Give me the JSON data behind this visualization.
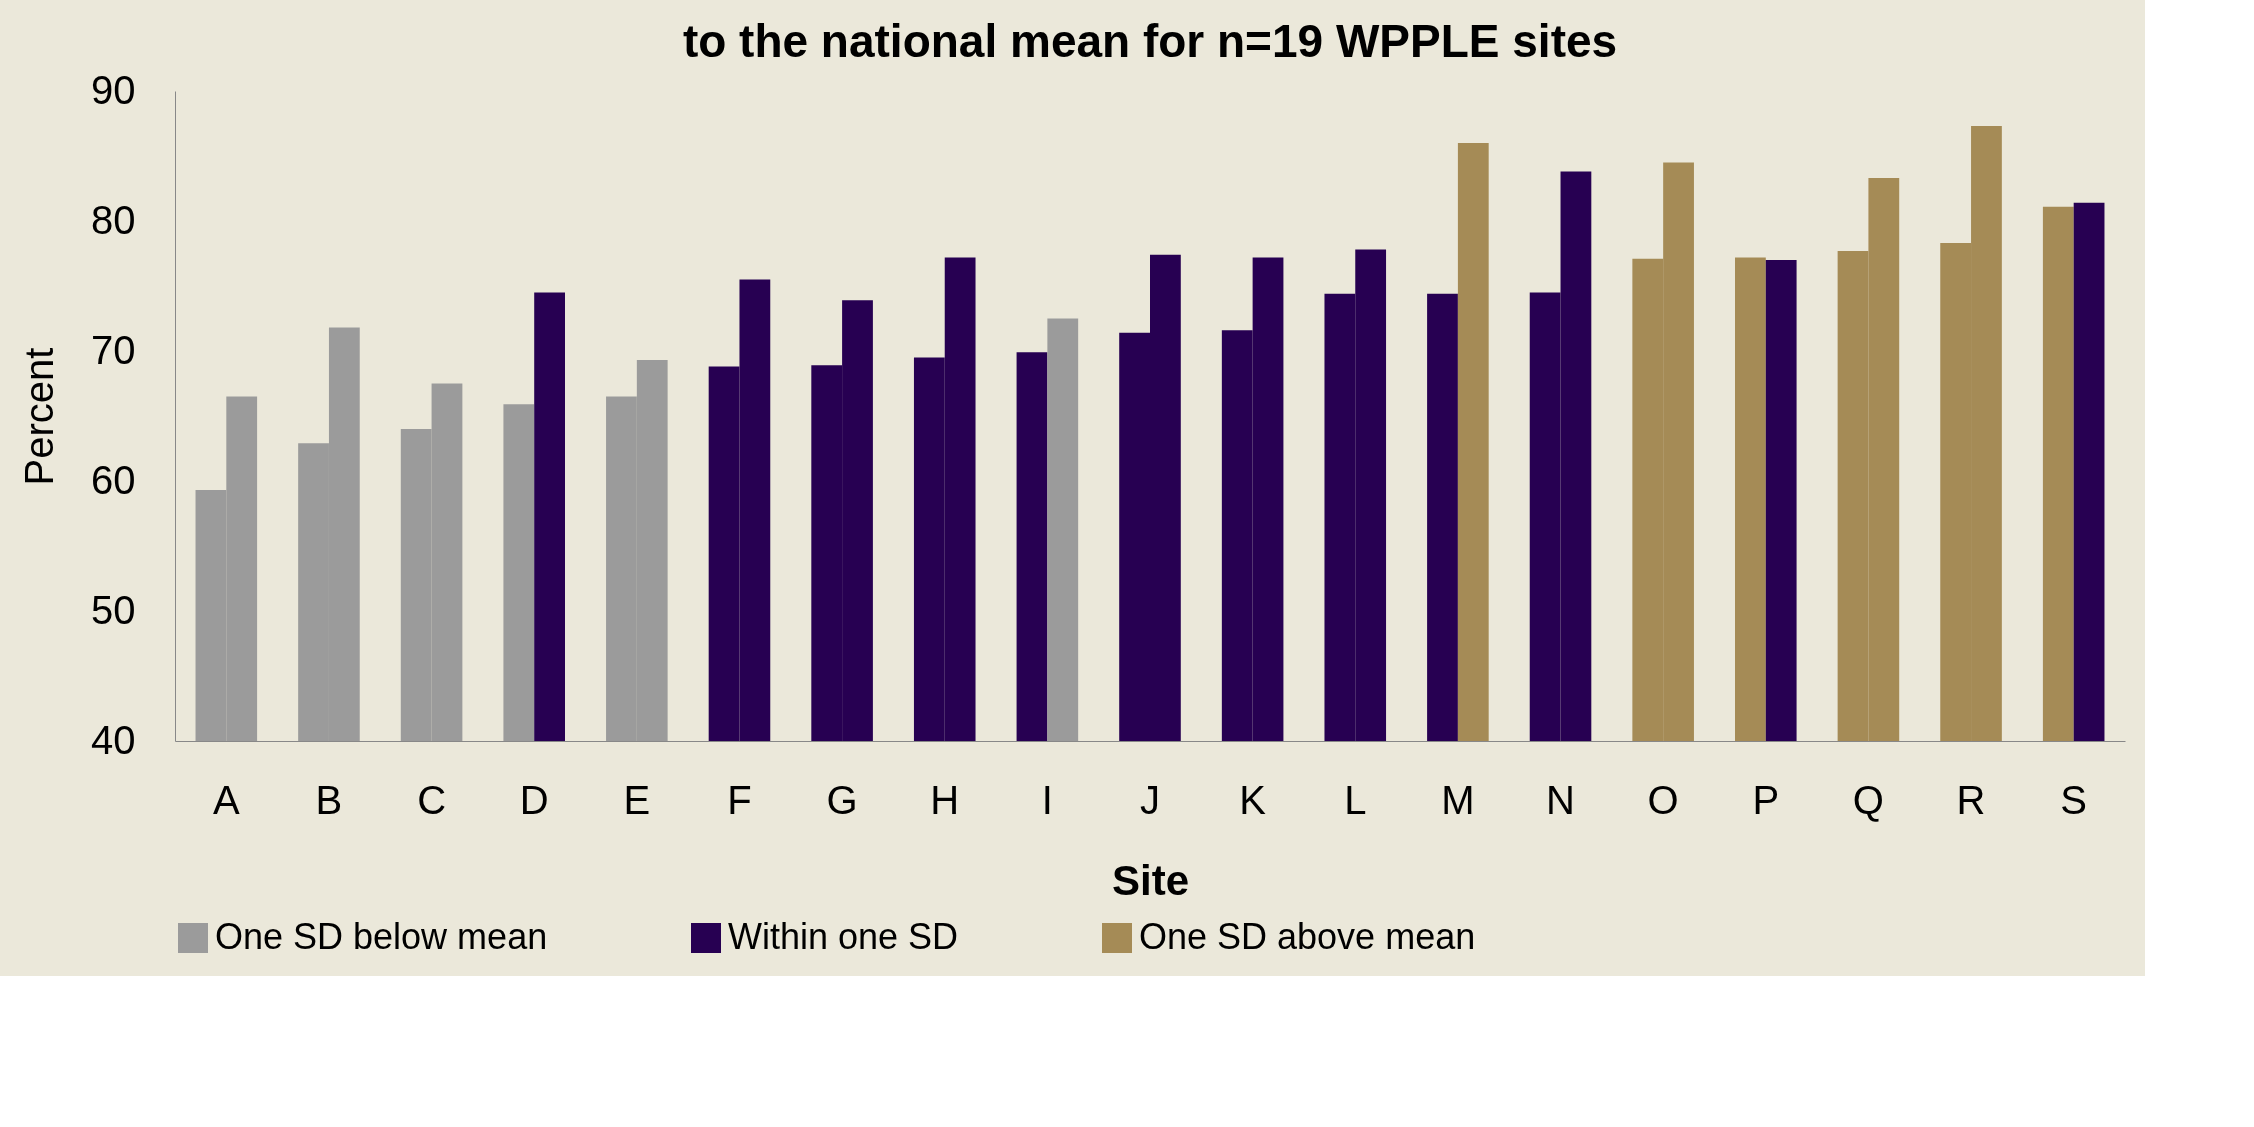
{
  "chart_data": {
    "type": "bar",
    "title": "to the national mean for n=19 WPPLE sites",
    "xlabel": "Site",
    "ylabel": "Percent",
    "categories": [
      "A",
      "B",
      "C",
      "D",
      "E",
      "F",
      "G",
      "H",
      "I",
      "J",
      "K",
      "L",
      "M",
      "N",
      "O",
      "P",
      "Q",
      "R",
      "S"
    ],
    "series": [
      {
        "name": "One SD below mean",
        "color": "#9b9b9b",
        "values": [
          59.3,
          62.9,
          64.0,
          65.9,
          66.5,
          null,
          null,
          null,
          null,
          null,
          null,
          null,
          null,
          null,
          null,
          null,
          null,
          null,
          null
        ]
      },
      {
        "name": "Within one SD",
        "color": "#270052",
        "values": [
          null,
          null,
          null,
          null,
          null,
          68.8,
          68.9,
          69.5,
          69.9,
          71.4,
          71.6,
          74.4,
          74.4,
          74.5,
          null,
          null,
          null,
          null,
          null
        ]
      },
      {
        "name": "One SD above mean",
        "color": "#a58b56",
        "values": [
          null,
          null,
          null,
          null,
          null,
          null,
          null,
          null,
          null,
          null,
          null,
          null,
          null,
          null,
          77.1,
          77.2,
          77.7,
          78.3,
          81.1
        ]
      },
      {
        "color": "#9b9b9b",
        "values": [
          66.5,
          71.8,
          67.5,
          null,
          69.3,
          null,
          null,
          null,
          72.5,
          null,
          null,
          null,
          null,
          null,
          null,
          null,
          null,
          null,
          null
        ]
      },
      {
        "color": "#270052",
        "values": [
          null,
          null,
          null,
          74.5,
          null,
          75.5,
          73.9,
          77.2,
          null,
          77.4,
          77.2,
          77.8,
          null,
          83.8,
          null,
          77.0,
          null,
          null,
          81.4
        ]
      },
      {
        "color": "#a58b56",
        "values": [
          null,
          null,
          null,
          null,
          null,
          null,
          null,
          null,
          null,
          null,
          null,
          null,
          86.0,
          null,
          84.5,
          null,
          83.3,
          87.3,
          null
        ]
      }
    ],
    "ylim": [
      40,
      90
    ],
    "yticks": [
      40,
      50,
      60,
      70,
      80,
      90
    ],
    "grid": false,
    "legend": "bottom"
  }
}
